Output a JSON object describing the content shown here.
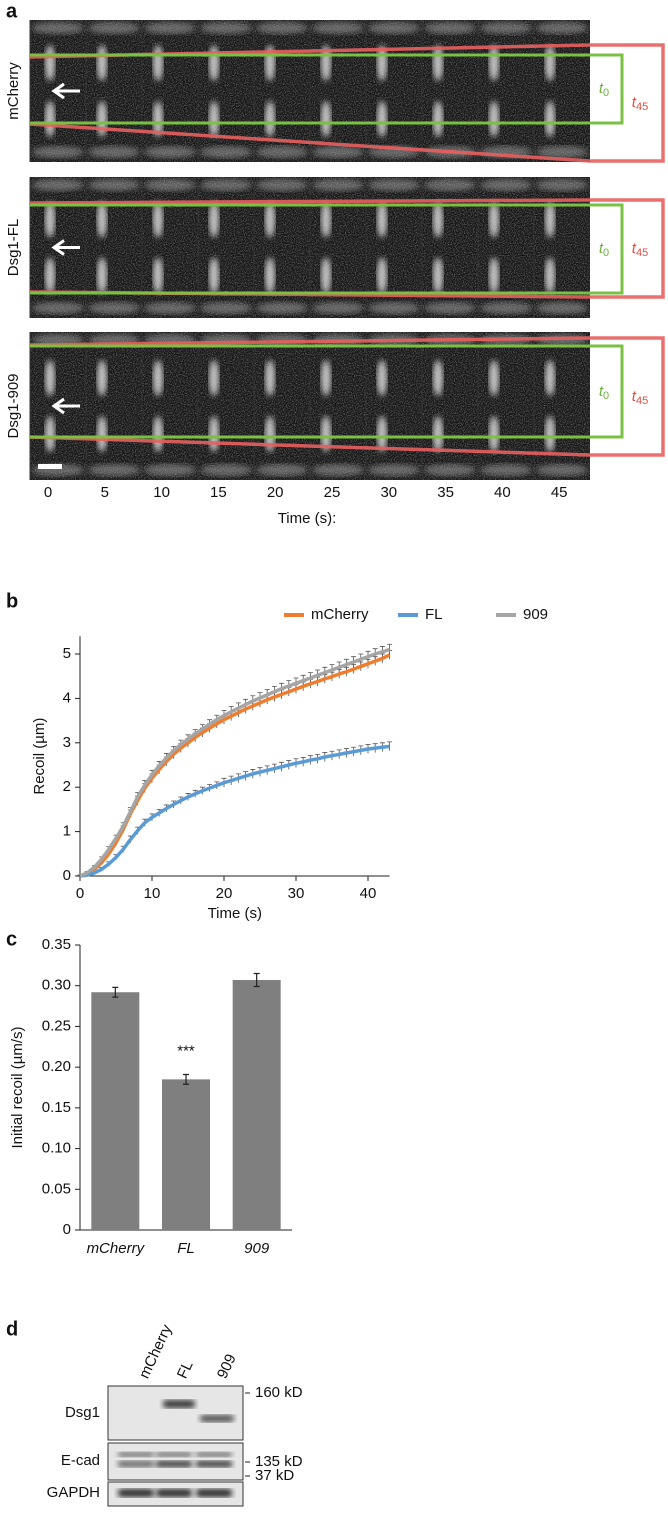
{
  "panel_a": {
    "label": "a",
    "rows": [
      "mCherry",
      "Dsg1-FL",
      "Dsg1-909"
    ],
    "time_ticks": [
      0,
      5,
      10,
      15,
      20,
      25,
      30,
      35,
      40,
      45
    ],
    "time_label": "Time (s):",
    "t0": {
      "base": "t",
      "sub": "0"
    },
    "t45": {
      "base": "t",
      "sub": "45"
    }
  },
  "chart_data": [
    {
      "type": "line",
      "panel_label": "b",
      "x_label": "Time (s)",
      "y_label": "Recoil (µm)",
      "x": [
        0,
        1,
        2,
        3,
        4,
        5,
        6,
        7,
        8,
        9,
        10,
        11,
        12,
        13,
        14,
        15,
        16,
        17,
        18,
        19,
        20,
        21,
        22,
        23,
        24,
        25,
        26,
        27,
        28,
        29,
        30,
        31,
        32,
        33,
        34,
        35,
        36,
        37,
        38,
        39,
        40,
        41,
        42,
        43
      ],
      "series": [
        {
          "name": "mCherry",
          "color": "#ef7d2d",
          "values": [
            0,
            0.05,
            0.15,
            0.3,
            0.5,
            0.75,
            1.05,
            1.4,
            1.7,
            1.98,
            2.2,
            2.4,
            2.58,
            2.74,
            2.88,
            3.0,
            3.12,
            3.23,
            3.33,
            3.43,
            3.52,
            3.6,
            3.68,
            3.76,
            3.83,
            3.9,
            3.97,
            4.03,
            4.09,
            4.15,
            4.21,
            4.27,
            4.33,
            4.38,
            4.44,
            4.49,
            4.55,
            4.6,
            4.66,
            4.72,
            4.78,
            4.84,
            4.9,
            4.98
          ],
          "errors": [
            0.02,
            0.03,
            0.04,
            0.05,
            0.06,
            0.07,
            0.08,
            0.09,
            0.1,
            0.1,
            0.1,
            0.1,
            0.1,
            0.1,
            0.1,
            0.1,
            0.1,
            0.1,
            0.1,
            0.1,
            0.1,
            0.1,
            0.1,
            0.1,
            0.1,
            0.1,
            0.1,
            0.1,
            0.1,
            0.1,
            0.1,
            0.1,
            0.1,
            0.1,
            0.1,
            0.1,
            0.1,
            0.1,
            0.1,
            0.1,
            0.1,
            0.1,
            0.1,
            0.1
          ]
        },
        {
          "name": "FL",
          "color": "#5b9bd5",
          "values": [
            0,
            0.02,
            0.07,
            0.15,
            0.27,
            0.42,
            0.6,
            0.82,
            1.02,
            1.2,
            1.32,
            1.42,
            1.52,
            1.61,
            1.7,
            1.78,
            1.85,
            1.92,
            1.98,
            2.04,
            2.1,
            2.15,
            2.2,
            2.25,
            2.3,
            2.34,
            2.38,
            2.42,
            2.46,
            2.5,
            2.54,
            2.57,
            2.61,
            2.64,
            2.68,
            2.71,
            2.74,
            2.77,
            2.8,
            2.83,
            2.86,
            2.88,
            2.9,
            2.92
          ],
          "errors": [
            0.02,
            0.02,
            0.03,
            0.04,
            0.05,
            0.06,
            0.07,
            0.08,
            0.08,
            0.08,
            0.08,
            0.08,
            0.08,
            0.08,
            0.08,
            0.08,
            0.08,
            0.08,
            0.08,
            0.08,
            0.1,
            0.1,
            0.1,
            0.1,
            0.1,
            0.1,
            0.1,
            0.1,
            0.1,
            0.1,
            0.1,
            0.1,
            0.1,
            0.1,
            0.1,
            0.1,
            0.1,
            0.1,
            0.1,
            0.1,
            0.1,
            0.1,
            0.1,
            0.1
          ]
        },
        {
          "name": "909",
          "color": "#a5a5a5",
          "values": [
            0,
            0.07,
            0.2,
            0.38,
            0.6,
            0.85,
            1.12,
            1.45,
            1.78,
            2.05,
            2.28,
            2.48,
            2.66,
            2.82,
            2.96,
            3.08,
            3.2,
            3.31,
            3.42,
            3.52,
            3.61,
            3.7,
            3.78,
            3.86,
            3.94,
            4.01,
            4.08,
            4.15,
            4.22,
            4.28,
            4.34,
            4.4,
            4.46,
            4.52,
            4.58,
            4.64,
            4.7,
            4.76,
            4.82,
            4.88,
            4.94,
            5.0,
            5.05,
            5.1
          ],
          "errors": [
            0.02,
            0.03,
            0.04,
            0.05,
            0.06,
            0.07,
            0.08,
            0.09,
            0.1,
            0.1,
            0.1,
            0.1,
            0.1,
            0.1,
            0.1,
            0.1,
            0.1,
            0.1,
            0.1,
            0.1,
            0.12,
            0.12,
            0.12,
            0.12,
            0.12,
            0.12,
            0.12,
            0.12,
            0.12,
            0.12,
            0.12,
            0.12,
            0.12,
            0.12,
            0.12,
            0.12,
            0.12,
            0.12,
            0.12,
            0.12,
            0.12,
            0.12,
            0.12,
            0.12
          ]
        }
      ],
      "xlim": [
        0,
        43
      ],
      "xticks": [
        0,
        10,
        20,
        30,
        40
      ],
      "ylim": [
        0,
        5.4
      ],
      "yticks": [
        0,
        1,
        2,
        3,
        4,
        5
      ]
    },
    {
      "type": "bar",
      "panel_label": "c",
      "y_label": "Initial recoil (µm/s)",
      "categories": [
        "mCherry",
        "FL",
        "909"
      ],
      "values": [
        0.292,
        0.185,
        0.307
      ],
      "errors": [
        0.006,
        0.006,
        0.008
      ],
      "color": "#7f7f7f",
      "annotation": "***",
      "ylim": [
        0,
        0.35
      ],
      "yticks": [
        0,
        0.05,
        {
          "value": 0.1,
          "label": "0.10"
        },
        0.15,
        {
          "value": 0.2,
          "label": "0.20"
        },
        0.25,
        {
          "value": 0.3,
          "label": "0.30"
        },
        0.35
      ]
    }
  ],
  "panel_d": {
    "label": "d",
    "lanes": [
      "mCherry",
      "FL",
      "909"
    ],
    "rows": [
      "Dsg1",
      "E-cad",
      "GAPDH"
    ],
    "sizes": [
      "160 kD",
      "135 kD",
      "37 kD"
    ]
  }
}
